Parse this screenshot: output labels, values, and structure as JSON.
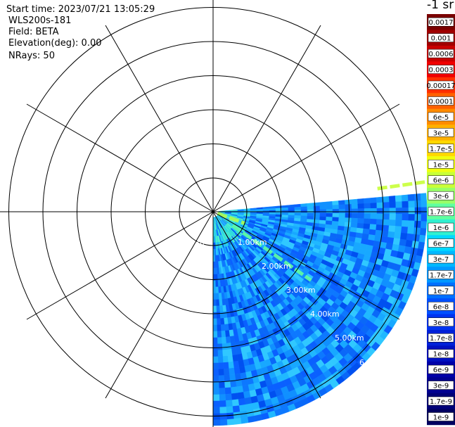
{
  "header": {
    "start_time": "Start time: 2023/07/21 13:05:29",
    "instrument": "WLS200s-181",
    "field": "Field: BETA",
    "elevation": "Elevation(deg): 0.00",
    "nrays": "NRays: 50"
  },
  "colorbar": {
    "unit_label": "-1 sr",
    "labels": [
      "0.0017",
      "0.001",
      "0.0006",
      "0.0003",
      "0.00017",
      "0.0001",
      "6e-5",
      "3e-5",
      "1.7e-5",
      "1e-5",
      "6e-6",
      "3e-6",
      "1.7e-6",
      "1e-6",
      "6e-7",
      "3e-7",
      "1.7e-7",
      "1e-7",
      "6e-8",
      "3e-8",
      "1.7e-8",
      "1e-8",
      "6e-9",
      "3e-9",
      "1.7e-9",
      "1e-9"
    ],
    "colors": [
      "#7a0000",
      "#a00000",
      "#c80000",
      "#f00000",
      "#ff3000",
      "#ff6000",
      "#ff8c00",
      "#ffb000",
      "#ffd800",
      "#f0ff10",
      "#c8ff38",
      "#98ff68",
      "#60ffa0",
      "#30f0d0",
      "#00d8ff",
      "#00b8ff",
      "#0098ff",
      "#0070ff",
      "#0050ff",
      "#0034f0",
      "#0020d8",
      "#0010c0",
      "#0000a8",
      "#000090",
      "#000078",
      "#000060"
    ]
  },
  "chart_data": {
    "type": "polar-sector",
    "field": "BETA",
    "unit": "sr-1",
    "range_unit": "km",
    "range_rings_km": [
      1.0,
      2.0,
      3.0,
      4.0,
      5.0,
      6.0
    ],
    "range_labels": [
      "m",
      "1.00km",
      "2.00km",
      "3.00km",
      "4.00km",
      "5.00km",
      "6"
    ],
    "scan_azimuth_deg": [
      85,
      180
    ],
    "nrays": 50,
    "features": [
      {
        "azimuth_deg": 82,
        "range_km": [
          4.0,
          6.0
        ],
        "approx_beta": "1e-5"
      },
      {
        "azimuth_deg": 110,
        "range_km": [
          0.2,
          1.4
        ],
        "approx_beta": "1e-5"
      },
      {
        "azimuth_deg": 125,
        "range_km": [
          1.0,
          5.0
        ],
        "approx_beta": "1.7e-6"
      }
    ]
  }
}
